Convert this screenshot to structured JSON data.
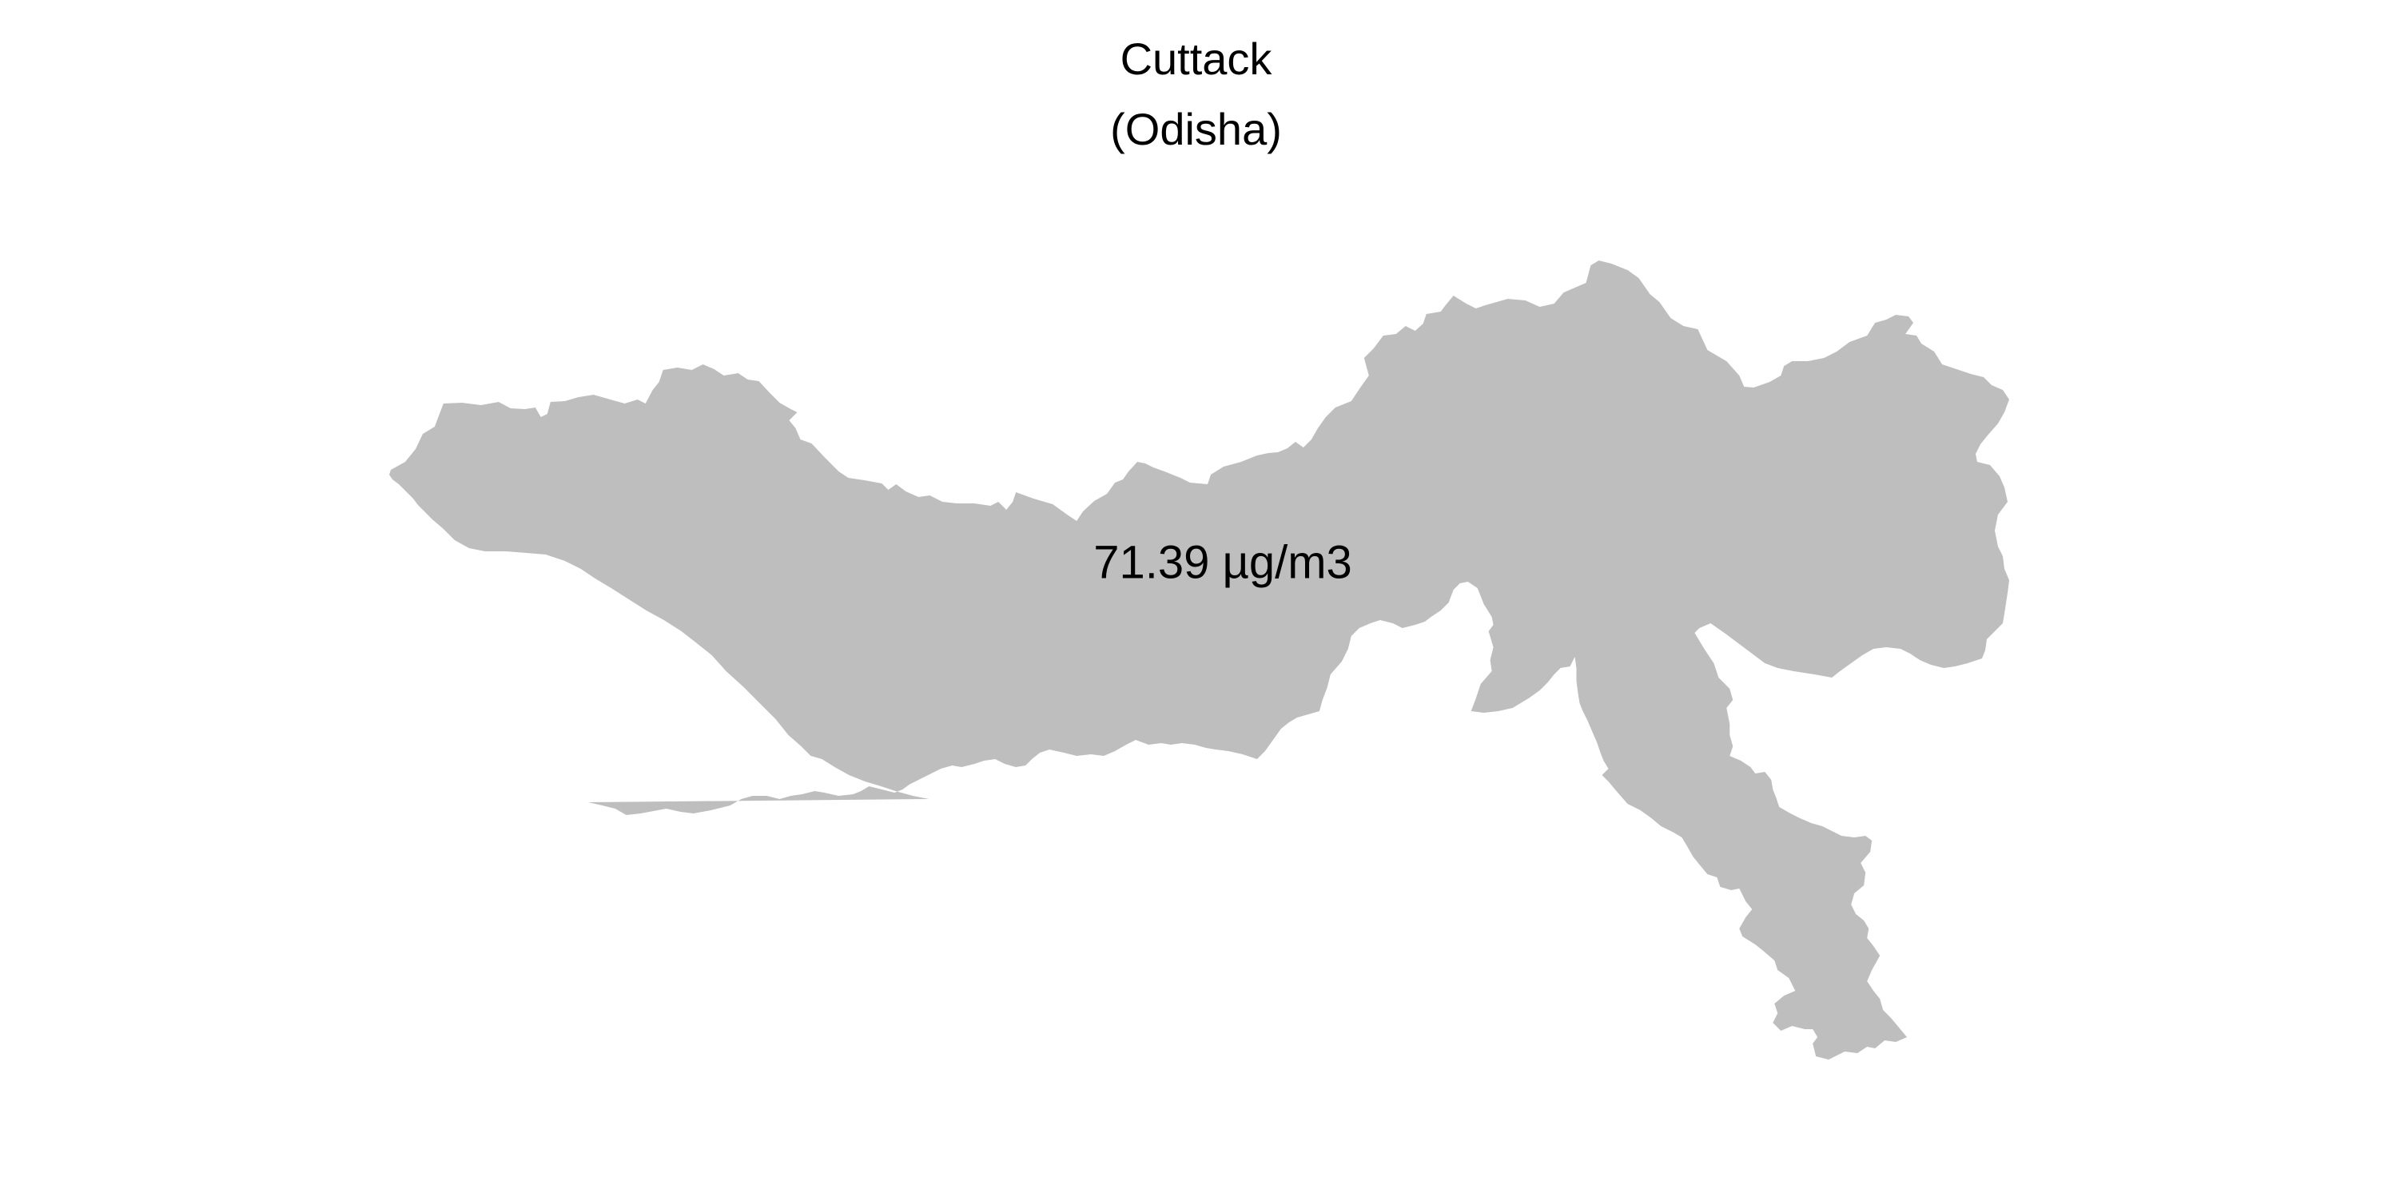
{
  "map": {
    "title": "Cuttack",
    "subtitle": "(Odisha)",
    "value_label": "71.39 µg/m3",
    "region_color": "#bebebe",
    "text_color": "#000000",
    "background_color": "#ffffff"
  }
}
